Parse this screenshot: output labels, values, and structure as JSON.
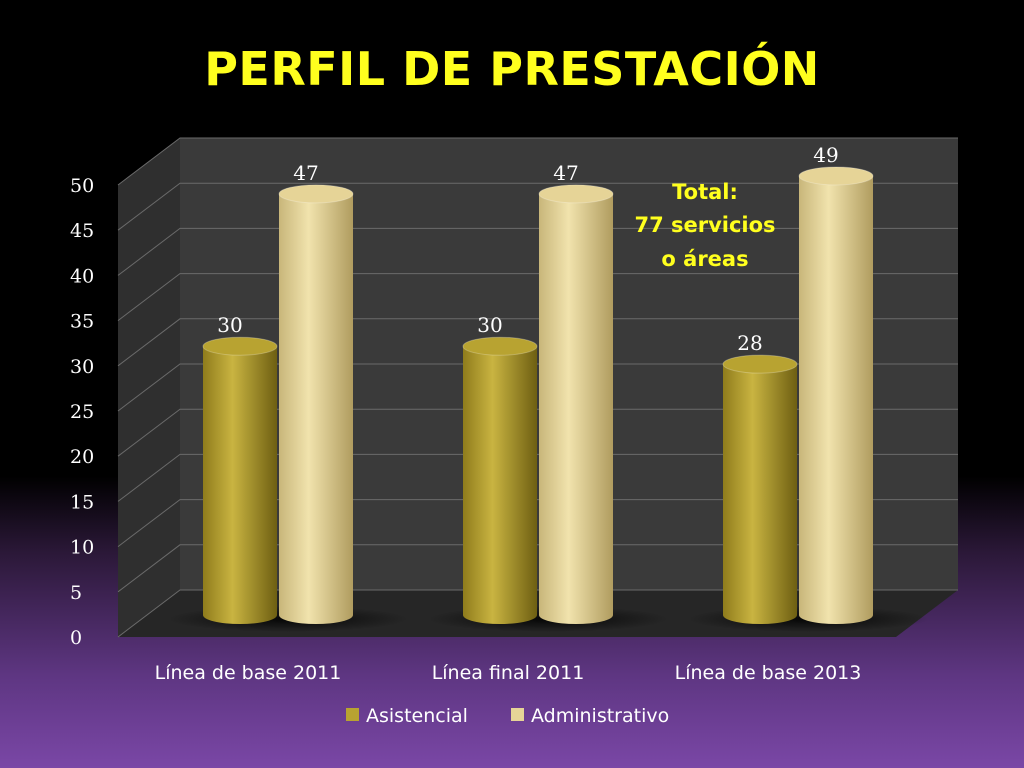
{
  "colors": {
    "title": "#ffff1e",
    "asistencial": "#b8a331",
    "administrativo": "#e6d497",
    "wall": "#3a3a3a",
    "floor": "#2b2b2b",
    "grid": "#6a6a6a"
  },
  "chart_data": {
    "type": "bar",
    "style": "3d-cylinder",
    "title": "PERFIL DE PRESTACIÓN",
    "categories": [
      "Línea de base 2011",
      "Línea final 2011",
      "Línea de base 2013"
    ],
    "series": [
      {
        "name": "Asistencial",
        "values": [
          30,
          30,
          28
        ]
      },
      {
        "name": "Administrativo",
        "values": [
          47,
          47,
          49
        ]
      }
    ],
    "ylim": [
      0,
      50
    ],
    "yticks": [
      "0",
      "5",
      "10",
      "15",
      "20",
      "25",
      "30",
      "35",
      "40",
      "45",
      "50"
    ],
    "grid": true,
    "legend": "bottom",
    "annotation": [
      "Total:",
      "77 servicios",
      "o áreas"
    ]
  }
}
